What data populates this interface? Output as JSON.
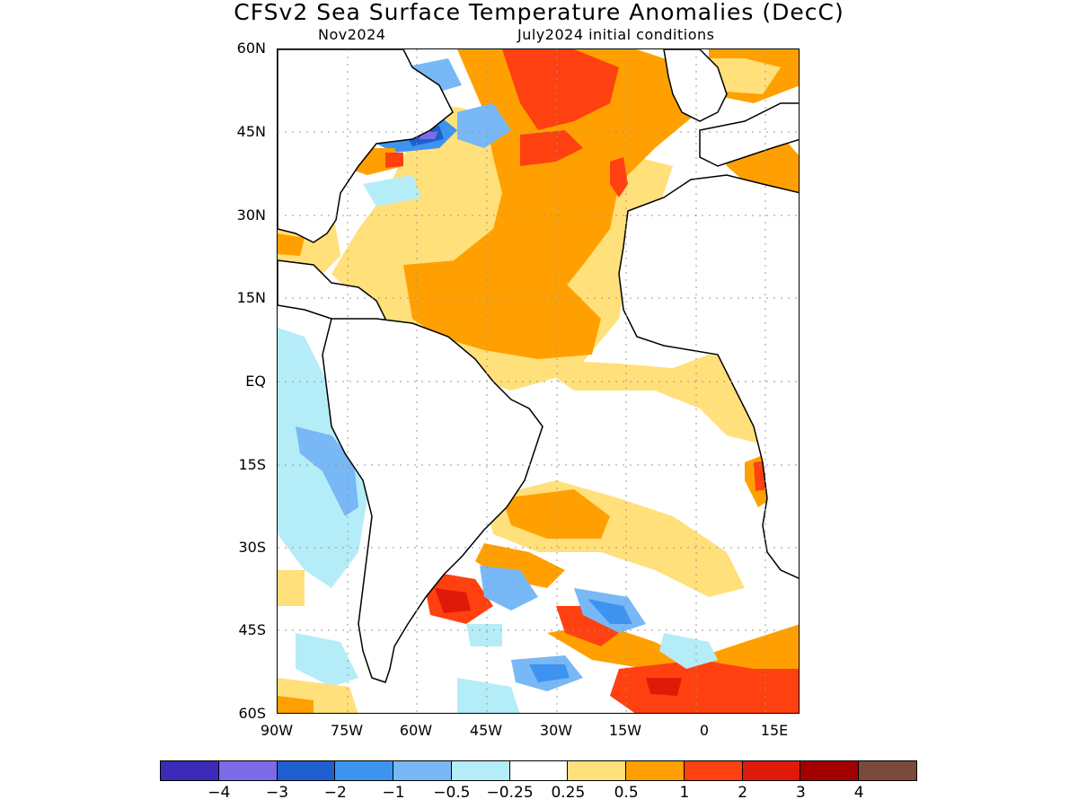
{
  "title": "CFSv2 Sea Surface Temperature Anomalies (DecC)",
  "subtitle_left": "Nov2024",
  "subtitle_right": "July2024 initial conditions",
  "lat_labels": [
    "60N",
    "45N",
    "30N",
    "15N",
    "EQ",
    "15S",
    "30S",
    "45S",
    "60S"
  ],
  "lon_labels": [
    "90W",
    "75W",
    "60W",
    "45W",
    "30W",
    "15W",
    "0",
    "15E"
  ],
  "colorbar": {
    "colors": [
      "#3c2ab8",
      "#7b6be6",
      "#1e5fd0",
      "#3d94f0",
      "#78b8f6",
      "#b4ecf8",
      "#ffffff",
      "#ffe07a",
      "#ffa000",
      "#ff4010",
      "#e01a08",
      "#a40000",
      "#7a4a3a"
    ],
    "labels": [
      "−4",
      "−3",
      "−2",
      "−1",
      "−0.5",
      "−0.25",
      "0.25",
      "0.5",
      "1",
      "2",
      "3",
      "4"
    ]
  }
}
